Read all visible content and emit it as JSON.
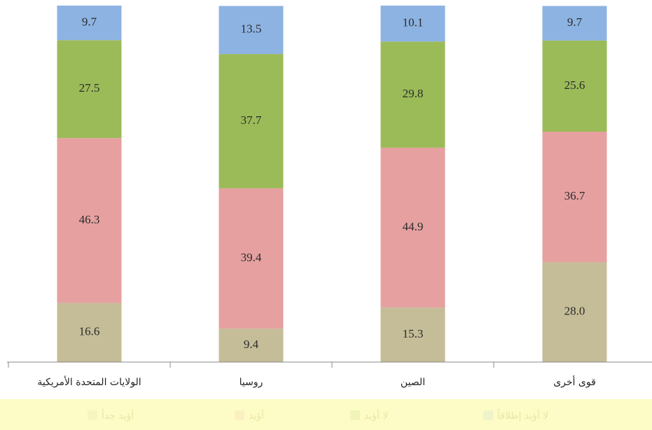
{
  "chart_data": {
    "type": "stacked_bar",
    "categories": [
      "الولايات المتحدة الأمريكية",
      "روسيا",
      "الصين",
      "قوى أخرى"
    ],
    "series": [
      {
        "name": "أؤيد جداً",
        "color": "#c4bd97",
        "values": [
          16.6,
          9.4,
          15.3,
          28.0
        ],
        "value_labels": [
          "16.6",
          "9.4",
          "15.3",
          "28.0"
        ]
      },
      {
        "name": "أؤيد",
        "color": "#e6a0a0",
        "values": [
          46.3,
          39.4,
          44.9,
          36.7
        ]
      },
      {
        "name": "لا أؤيد",
        "color": "#9bbb59",
        "values": [
          27.5,
          37.7,
          29.8,
          25.6
        ]
      },
      {
        "name": "لا أؤيد إطلاقاً",
        "color": "#8db3e2",
        "values": [
          9.7,
          13.5,
          10.1,
          9.7
        ]
      }
    ]
  }
}
